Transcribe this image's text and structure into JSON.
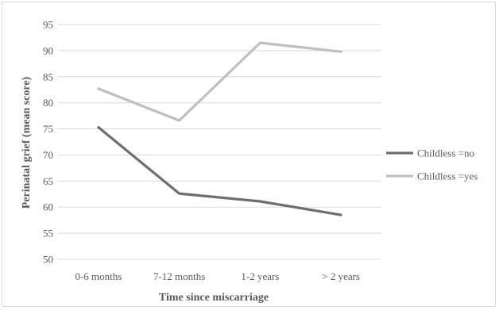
{
  "chart_data": {
    "type": "line",
    "title": "",
    "xlabel": "Time since miscarriage",
    "ylabel": "Perinatal grief (mean score)",
    "categories": [
      "0-6 months",
      "7-12 months",
      "1-2 years",
      "> 2 years"
    ],
    "ylim": [
      50,
      95
    ],
    "yticks": [
      "50",
      "55",
      "60",
      "65",
      "70",
      "75",
      "80",
      "85",
      "90",
      "95"
    ],
    "grid": true,
    "legend_position": "right",
    "series": [
      {
        "name": "Childless =no",
        "color": "#6e6e6e",
        "values": [
          75.3,
          62.6,
          61.1,
          58.5
        ]
      },
      {
        "name": "Childless =yes",
        "color": "#bfbfbf",
        "values": [
          82.7,
          76.6,
          91.5,
          89.8
        ]
      }
    ]
  }
}
